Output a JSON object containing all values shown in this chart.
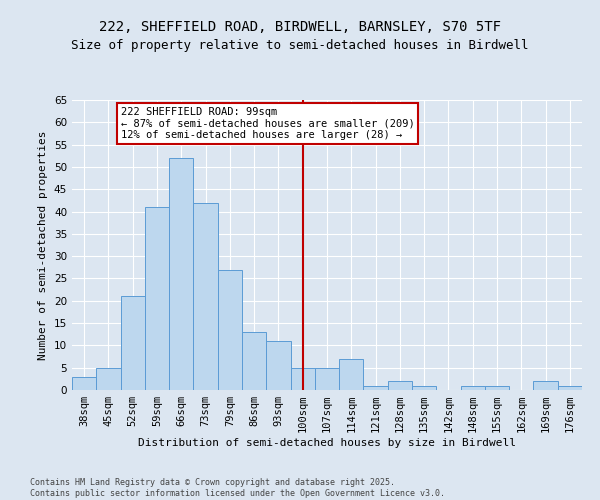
{
  "title_line1": "222, SHEFFIELD ROAD, BIRDWELL, BARNSLEY, S70 5TF",
  "title_line2": "Size of property relative to semi-detached houses in Birdwell",
  "xlabel": "Distribution of semi-detached houses by size in Birdwell",
  "ylabel": "Number of semi-detached properties",
  "footer": "Contains HM Land Registry data © Crown copyright and database right 2025.\nContains public sector information licensed under the Open Government Licence v3.0.",
  "categories": [
    "38sqm",
    "45sqm",
    "52sqm",
    "59sqm",
    "66sqm",
    "73sqm",
    "79sqm",
    "86sqm",
    "93sqm",
    "100sqm",
    "107sqm",
    "114sqm",
    "121sqm",
    "128sqm",
    "135sqm",
    "142sqm",
    "148sqm",
    "155sqm",
    "162sqm",
    "169sqm",
    "176sqm"
  ],
  "values": [
    3,
    5,
    21,
    41,
    52,
    42,
    27,
    13,
    11,
    5,
    5,
    7,
    1,
    2,
    1,
    0,
    1,
    1,
    0,
    2,
    1
  ],
  "bar_color": "#bdd7ee",
  "bar_edge_color": "#5b9bd5",
  "vline_x": 9,
  "vline_color": "#c00000",
  "annotation_text": "222 SHEFFIELD ROAD: 99sqm\n← 87% of semi-detached houses are smaller (209)\n12% of semi-detached houses are larger (28) →",
  "annotation_box_color": "#ffffff",
  "annotation_box_edge_color": "#c00000",
  "ylim": [
    0,
    65
  ],
  "yticks": [
    0,
    5,
    10,
    15,
    20,
    25,
    30,
    35,
    40,
    45,
    50,
    55,
    60,
    65
  ],
  "background_color": "#dce6f1",
  "plot_bg_color": "#dce6f1",
  "grid_color": "#ffffff",
  "title_fontsize": 10,
  "subtitle_fontsize": 9,
  "label_fontsize": 8,
  "tick_fontsize": 7.5,
  "annot_fontsize": 7.5,
  "footer_fontsize": 6
}
